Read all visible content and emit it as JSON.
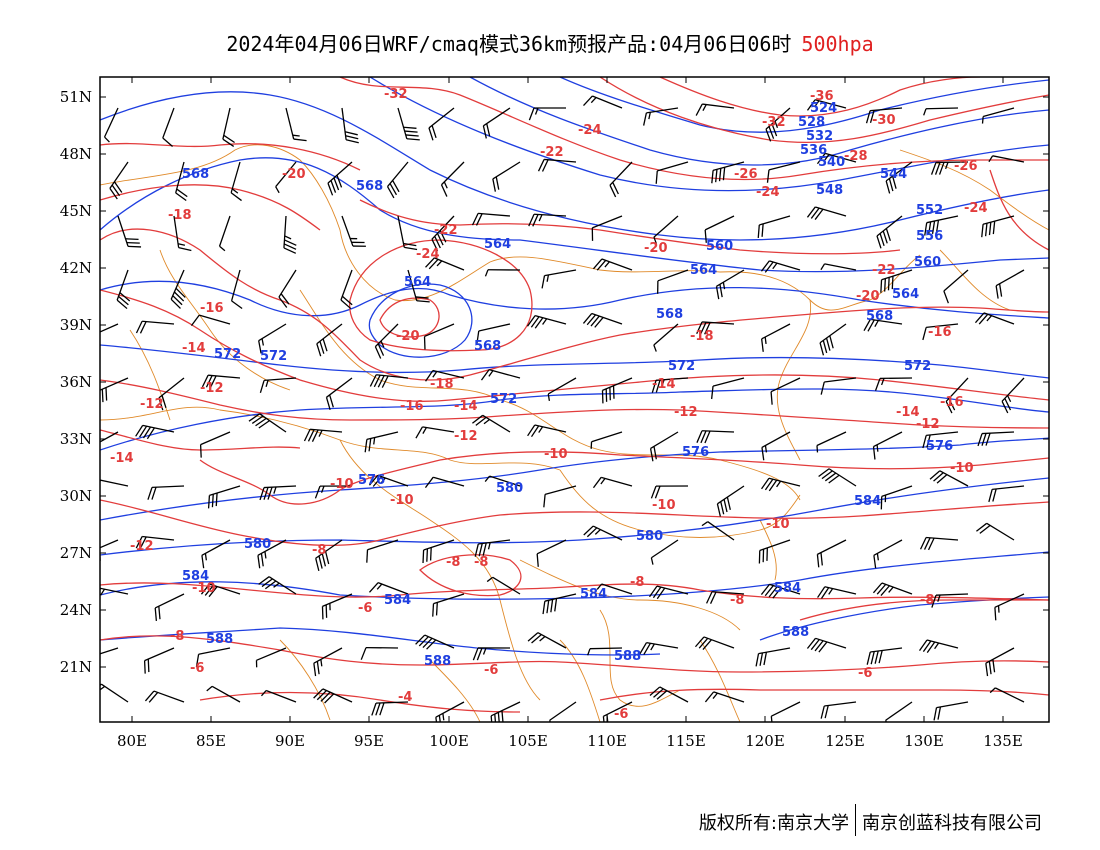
{
  "header": {
    "title": "2024年04月06日WRF/cmaq模式36km预报产品:04月06日06时",
    "level": "500hpa"
  },
  "axes": {
    "lat_labels": [
      "51N",
      "48N",
      "45N",
      "42N",
      "39N",
      "36N",
      "33N",
      "30N",
      "27N",
      "24N",
      "21N"
    ],
    "lon_labels": [
      "80E",
      "85E",
      "90E",
      "95E",
      "100E",
      "105E",
      "110E",
      "115E",
      "120E",
      "125E",
      "130E",
      "135E"
    ]
  },
  "legend_colors": {
    "geopotential_height": "#1f3fe0",
    "temperature": "#e23c3c",
    "boundaries": "#e08a2a",
    "wind_barbs": "#000000"
  },
  "height_labels": [
    "524",
    "528",
    "532",
    "536",
    "540",
    "544",
    "548",
    "552",
    "556",
    "560",
    "564",
    "568",
    "572",
    "576",
    "580",
    "584",
    "588"
  ],
  "temperature_labels": [
    "-36",
    "-32",
    "-30",
    "-28",
    "-26",
    "-24",
    "-22",
    "-20",
    "-18",
    "-16",
    "-14",
    "-12",
    "-10",
    "-8",
    "-6",
    "-4"
  ],
  "footer": {
    "copyright": "版权所有:南京大学",
    "company": "南京创蓝科技有限公司"
  }
}
